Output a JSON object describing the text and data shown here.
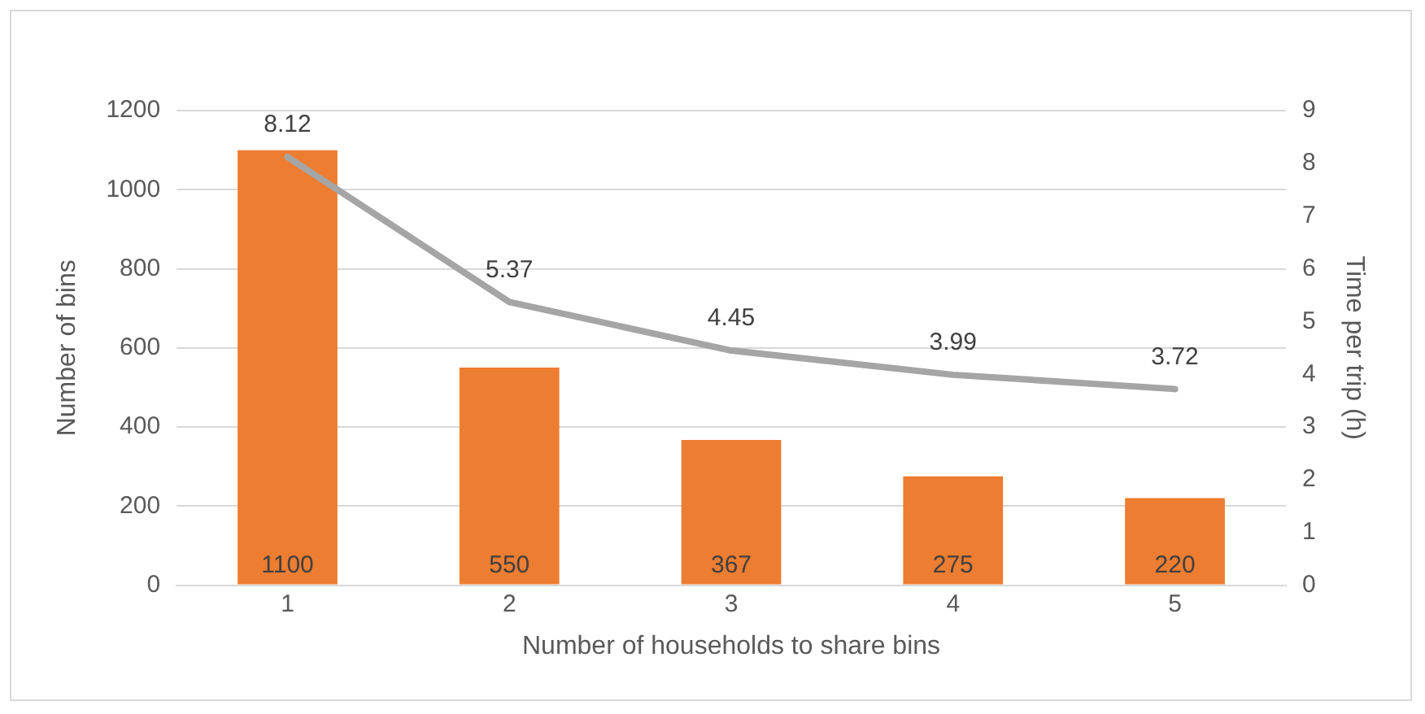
{
  "chart_data": {
    "type": "bar",
    "xlabel": "Number of households to share bins",
    "ylabel": "Number of bins",
    "y2label": "Time per trip (h)",
    "categories": [
      "1",
      "2",
      "3",
      "4",
      "5"
    ],
    "series": [
      {
        "color": "#ed7d31",
        "values": [
          1100,
          550,
          367,
          275,
          220
        ]
      },
      {
        "type": "line",
        "axis": "y2",
        "color": "#a5a5a5",
        "values": [
          8.12,
          5.37,
          4.45,
          3.99,
          3.72
        ]
      }
    ],
    "ylim": [
      0,
      1200
    ],
    "yticks": [
      0,
      200,
      400,
      600,
      800,
      1000,
      1200
    ],
    "y2lim": [
      0,
      9
    ],
    "y2ticks": [
      0,
      1,
      2,
      3,
      4,
      5,
      6,
      7,
      8,
      9
    ],
    "grid": "y",
    "marker": "none",
    "line_style": "solid",
    "data_labels": true,
    "legend": false
  }
}
